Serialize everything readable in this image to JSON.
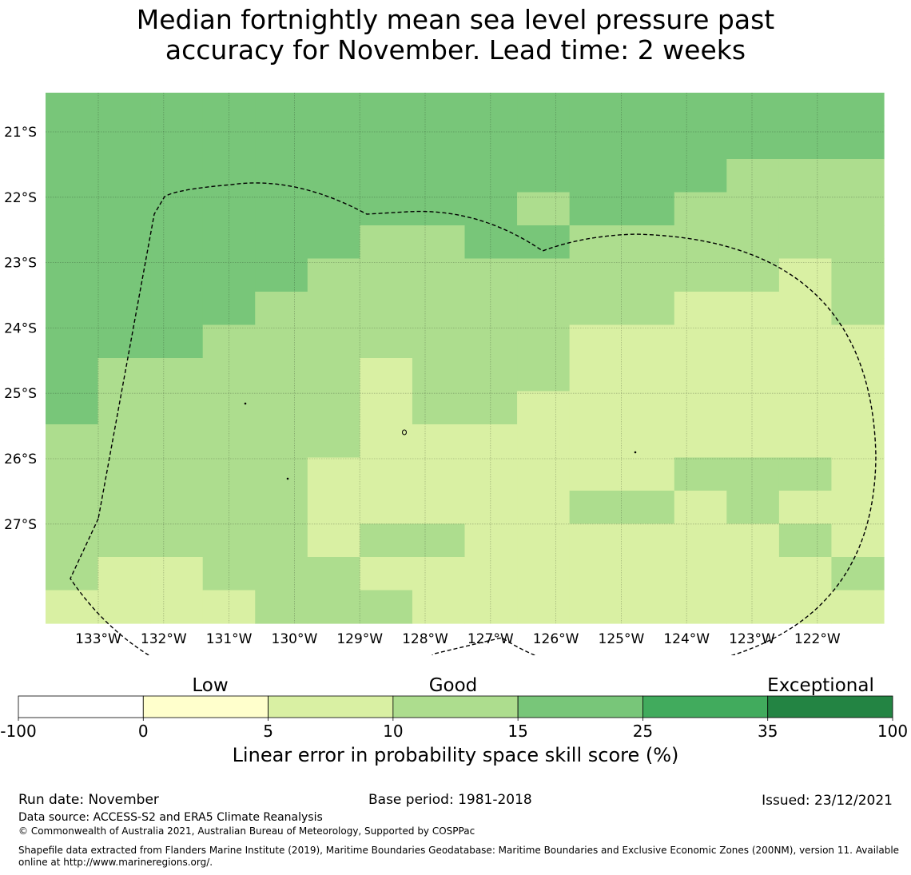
{
  "title_lines": [
    "Median fortnightly mean sea level pressure past",
    "accuracy for November. Lead time: 2 weeks"
  ],
  "map": {
    "lon_labels": [
      "133°W",
      "132°W",
      "131°W",
      "130°W",
      "129°W",
      "128°W",
      "127°W",
      "126°W",
      "125°W",
      "124°W",
      "123°W",
      "122°W"
    ],
    "lat_labels": [
      "21°S",
      "22°S",
      "23°S",
      "24°S",
      "25°S",
      "26°S",
      "27°S"
    ],
    "grid_class_levels": [
      "4444444444444444",
      "4444444444444444",
      "4444444444444333",
      "4444444443443333",
      "4444443344333333",
      "4444433333333323",
      "4444333333332223",
      "4443333333222222",
      "4333332333222222",
      "4333332332222222",
      "3333332222222222",
      "3333322222223332",
      "3333322222332322",
      "3333323322222232",
      "3223332222222223",
      "2222333222222222"
    ],
    "class_colors": {
      "1": "#ffffcc",
      "2": "#d9f0a3",
      "3": "#addd8e",
      "4": "#78c679",
      "5": "#41ab5d",
      "6": "#238443"
    }
  },
  "colorbar": {
    "category_labels": [
      "Low",
      "Good",
      "Exceptional"
    ],
    "ticks": [
      "-100",
      "0",
      "5",
      "10",
      "15",
      "25",
      "35",
      "100"
    ],
    "colors": [
      "#ffffff",
      "#ffffcc",
      "#d9f0a3",
      "#addd8e",
      "#78c679",
      "#41ab5d",
      "#238443"
    ],
    "label": "Linear error in probability space skill score (%)"
  },
  "footer": {
    "run_date": "Run date: November",
    "base_period": "Base period: 1981-2018",
    "issued": "Issued: 23/12/2021",
    "data_source": "Data source: ACCESS-S2 and ERA5 Climate Reanalysis",
    "copyright": "© Commonwealth of Australia 2021, Australian Bureau of Meteorology, Supported by COSPPac",
    "shapefile_line1": "Shapefile data extracted from Flanders Marine Institute (2019), Maritime Boundaries Geodatabase: Maritime Boundaries and Exclusive Economic Zones (200NM), version 11. Available",
    "shapefile_line2": "online at http://www.marineregions.org/."
  }
}
